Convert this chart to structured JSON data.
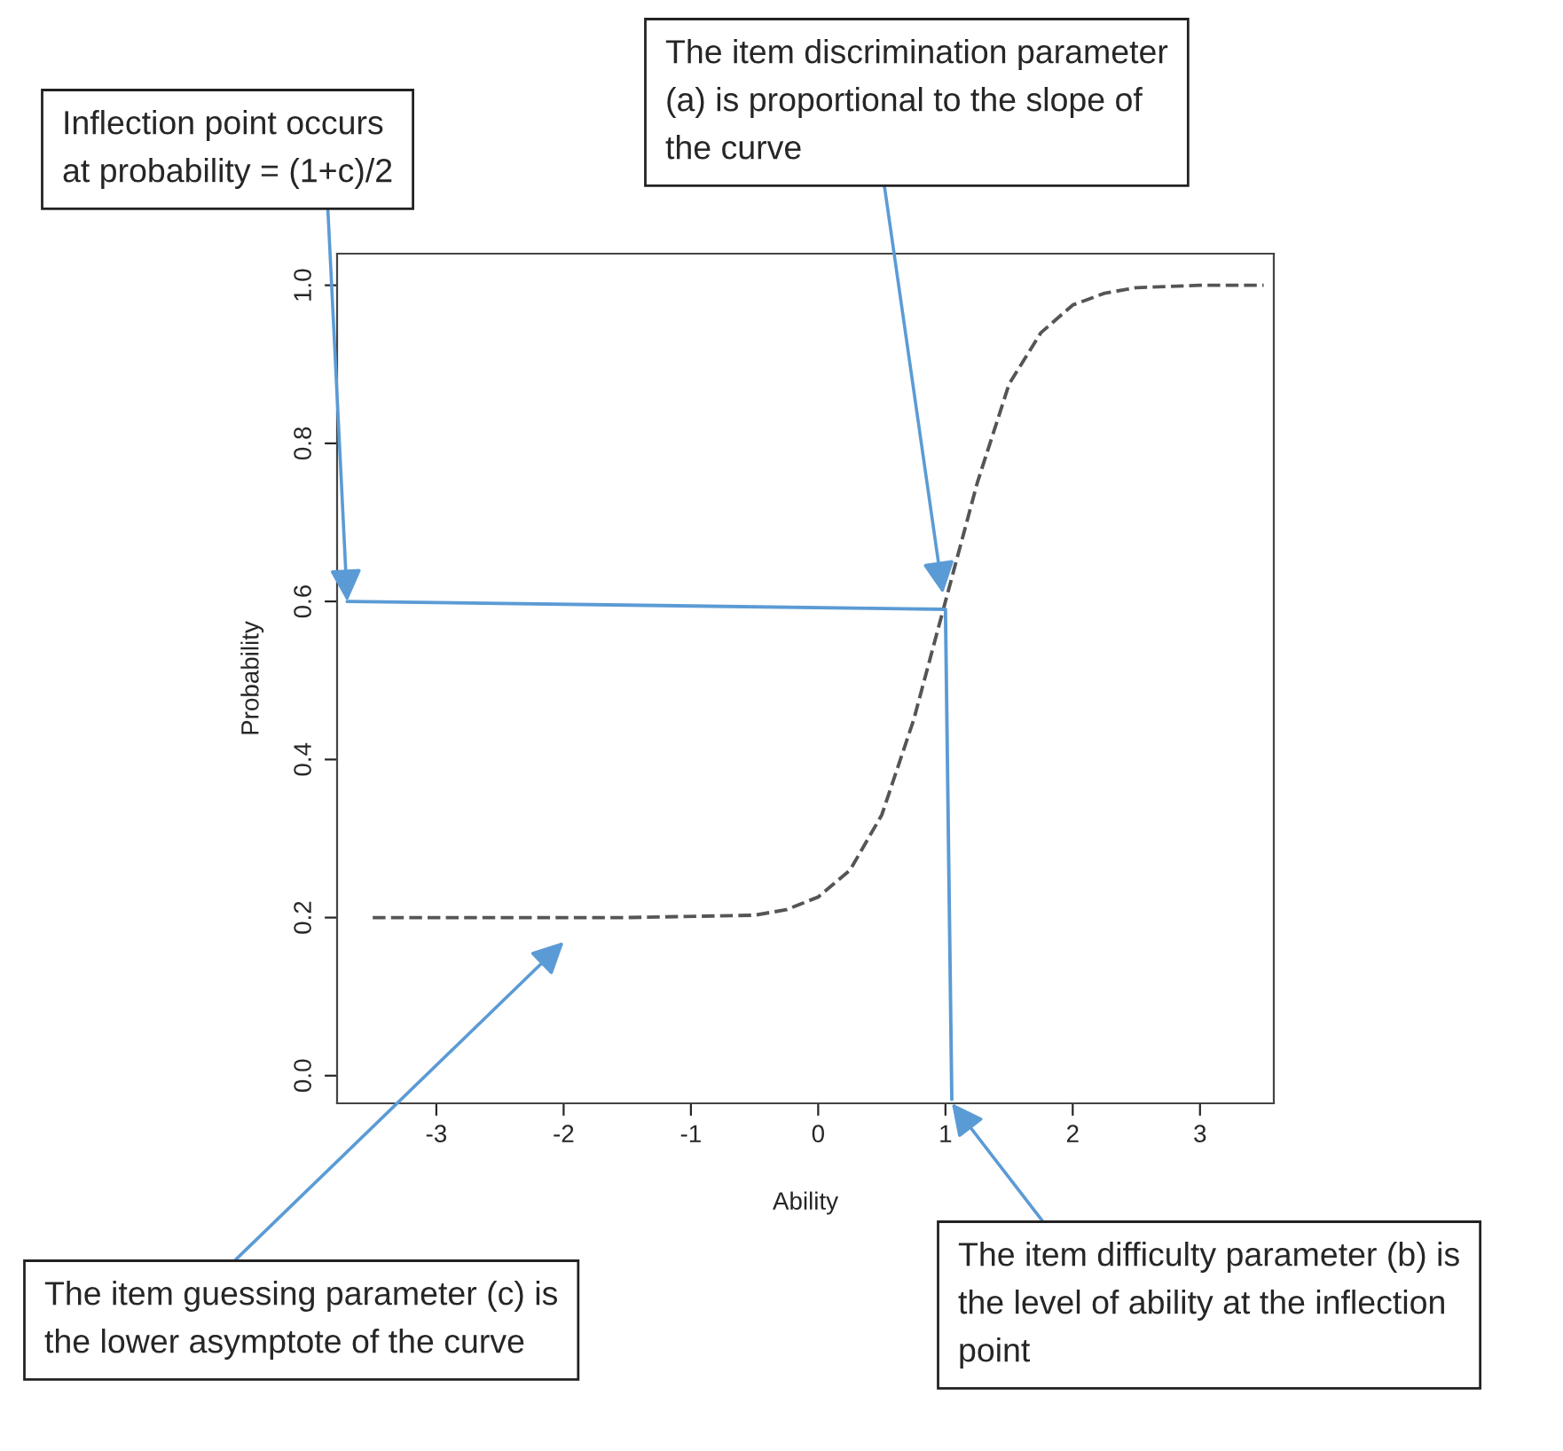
{
  "chart_data": {
    "type": "line",
    "xlabel": "Ability",
    "ylabel": "Probability",
    "series": [
      {
        "color": "#555555",
        "line_style": "dashed",
        "x": [
          -3.5,
          -2.5,
          -1.5,
          -0.5,
          -0.25,
          0,
          0.25,
          0.5,
          0.75,
          1,
          1.25,
          1.5,
          1.75,
          2,
          2.25,
          2.5,
          3,
          3.5
        ],
        "values": [
          0.2,
          0.2,
          0.2,
          0.203,
          0.21,
          0.226,
          0.26,
          0.33,
          0.45,
          0.6,
          0.75,
          0.875,
          0.94,
          0.975,
          0.99,
          0.997,
          1.0,
          1.0
        ]
      },
      {
        "color": "#5b9bd5",
        "line_style": "solid",
        "x": [
          -3.7,
          1,
          1.05
        ],
        "values": [
          0.6,
          0.59,
          -0.03
        ]
      }
    ],
    "xlim": [
      -3.78,
      3.58
    ],
    "ylim": [
      -0.035,
      1.04
    ],
    "xticks": [
      -3,
      -2,
      -1,
      0,
      1,
      2,
      3
    ],
    "yticks": [
      {
        "value": 0,
        "label": "0.0"
      },
      0.2,
      0.4,
      0.6,
      0.8,
      {
        "value": 1,
        "label": "1.0"
      }
    ],
    "grid": false,
    "legend": false,
    "marker": "none",
    "annotations": [
      {
        "text": "Inflection point occurs\nat probability = (1+c)/2",
        "x": -3.7,
        "y": 0.6
      },
      {
        "text": "The item discrimination parameter\n(a) is proportional to the slope of\nthe curve",
        "x": 0.98,
        "y": 0.61
      },
      "The item guessing parameter (c) is\nthe lower asymptote of the curve",
      {
        "text": "The item difficulty parameter (b) is\nthe level of ability at the inflection\npoint",
        "x": 1.05,
        "y": -0.035
      }
    ]
  }
}
